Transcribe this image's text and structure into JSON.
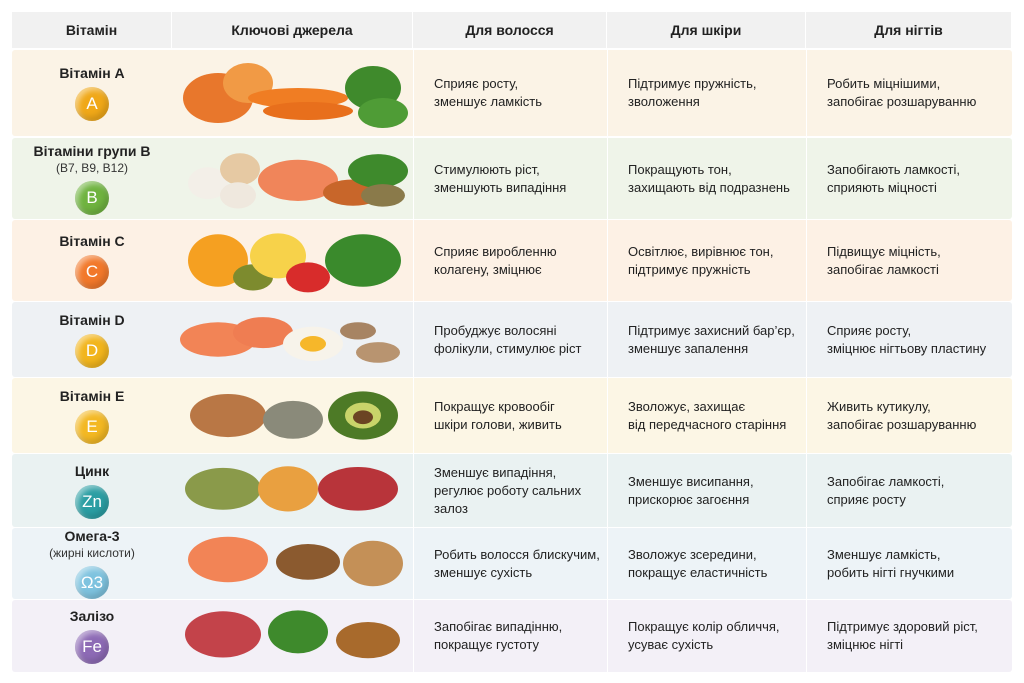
{
  "header": {
    "columns": [
      "Вітамін",
      "Ключові джерела",
      "Для волосся",
      "Для шкіри",
      "Для нігтів"
    ]
  },
  "rows": [
    {
      "name": "Вітамін A",
      "badge": "A",
      "hair": [
        "Сприяє росту,",
        "зменшує ламкість"
      ],
      "skin": [
        "Підтримує пружність,",
        "зволоження"
      ],
      "nails": [
        "Робить міцнішими,",
        "запобігає розшаруванню"
      ]
    },
    {
      "name": "Вітаміни групи B",
      "sub": "(B7, B9, B12)",
      "badge": "B",
      "hair": [
        "Стимулюють ріст,",
        "зменшують випадіння"
      ],
      "skin": [
        "Покращують тон,",
        "захищають від подразнень"
      ],
      "nails": [
        "Запобігають ламкості,",
        "сприяють міцності"
      ]
    },
    {
      "name": "Вітамін C",
      "badge": "C",
      "hair": [
        "Сприяє виробленню",
        "колагену, зміцнює"
      ],
      "skin": [
        "Освітлює, вирівнює тон,",
        "підтримує пружність"
      ],
      "nails": [
        "Підвищує міцність,",
        "запобігає ламкості"
      ]
    },
    {
      "name": "Вітамін D",
      "badge": "D",
      "hair": [
        "Пробуджує волосяні",
        "фолікули, стимулює ріст"
      ],
      "skin": [
        "Підтримує захисний бар’єр,",
        "зменшує запалення"
      ],
      "nails": [
        "Сприяє росту,",
        "зміцнює нігтьову пластину"
      ]
    },
    {
      "name": "Вітамін E",
      "badge": "E",
      "hair": [
        "Покращує кровообіг",
        "шкіри голови, живить"
      ],
      "skin": [
        "Зволожує, захищає",
        "від передчасного старіння"
      ],
      "nails": [
        "Живить кутикулу,",
        "запобігає розшаруванню"
      ]
    },
    {
      "name": "Цинк",
      "badge": "Zn",
      "hair": [
        "Зменшує випадіння,",
        "регулює роботу сальних",
        "залоз"
      ],
      "skin": [
        "Зменшує висипання,",
        "прискорює загоєння"
      ],
      "nails": [
        "Запобігає ламкості,",
        "сприяє росту"
      ]
    },
    {
      "name": "Омега-3",
      "sub": "(жирні кислоти)",
      "badge": "Ω3",
      "hair": [
        "Робить волосся блискучим,",
        "зменшує сухість"
      ],
      "skin": [
        "Зволожує зсередини,",
        "покращує еластичність"
      ],
      "nails": [
        "Зменшує ламкість,",
        "робить нігті гнучкими"
      ]
    },
    {
      "name": "Залізо",
      "badge": "Fe",
      "hair": [
        "Запобігає випадінню,",
        "покращує густоту"
      ],
      "skin": [
        "Покращує колір обличчя,",
        "усуває сухість"
      ],
      "nails": [
        "Підтримує здоровий ріст,",
        "зміцнює нігті"
      ]
    }
  ]
}
